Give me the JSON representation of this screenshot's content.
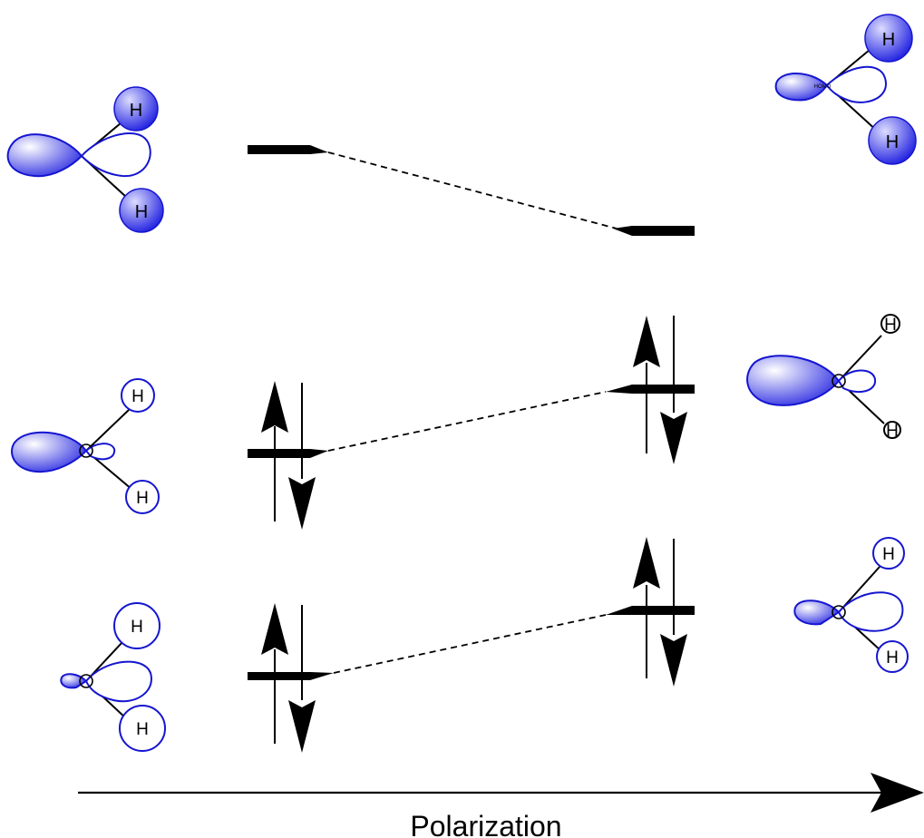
{
  "axis": {
    "label": "Polarization"
  },
  "atom_label": "H",
  "center_label": "HOMO",
  "colors": {
    "lobe_light": "#ffffff",
    "lobe_dark": "#1f1fe0",
    "outline": "#1515d0",
    "line": "#000000"
  },
  "left_levels": [
    {
      "role": "lumo",
      "electrons": 0
    },
    {
      "role": "homo",
      "electrons": 2
    },
    {
      "role": "homo-1",
      "electrons": 2
    }
  ],
  "right_levels": [
    {
      "role": "lumo",
      "electrons": 0
    },
    {
      "role": "homo",
      "electrons": 2
    },
    {
      "role": "homo-1",
      "electrons": 2
    }
  ]
}
